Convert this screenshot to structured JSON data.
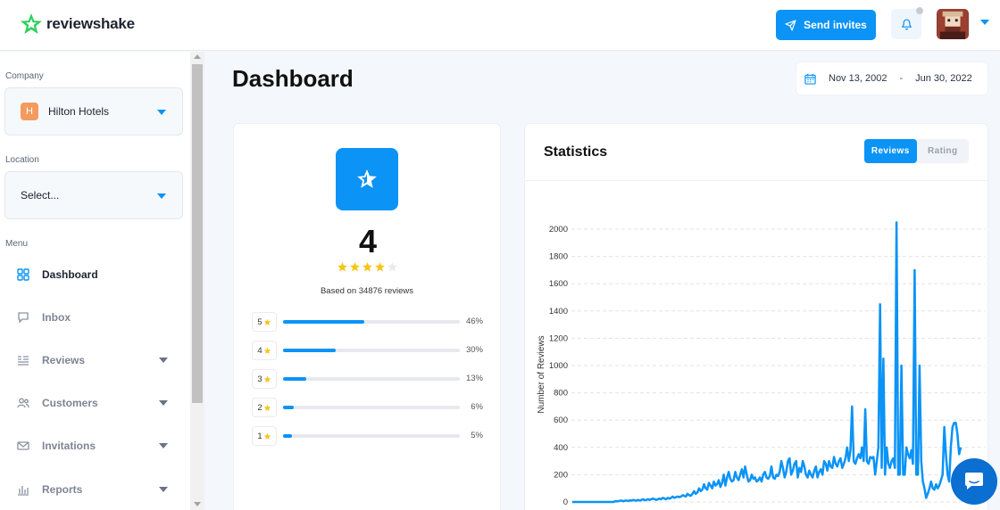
{
  "app": {
    "name": "reviewshake"
  },
  "header": {
    "send_invites_label": "Send invites"
  },
  "sidebar": {
    "company_label": "Company",
    "company_value": "Hilton Hotels",
    "company_badge": "H",
    "location_label": "Location",
    "location_value": "Select...",
    "menu_label": "Menu",
    "items": [
      {
        "label": "Dashboard",
        "icon": "grid-icon",
        "active": true,
        "has_caret": false
      },
      {
        "label": "Inbox",
        "icon": "chat-icon",
        "active": false,
        "has_caret": false
      },
      {
        "label": "Reviews",
        "icon": "reviews-icon",
        "active": false,
        "has_caret": true
      },
      {
        "label": "Customers",
        "icon": "users-icon",
        "active": false,
        "has_caret": true
      },
      {
        "label": "Invitations",
        "icon": "mail-icon",
        "active": false,
        "has_caret": true
      },
      {
        "label": "Reports",
        "icon": "bar-chart-icon",
        "active": false,
        "has_caret": true
      }
    ]
  },
  "main": {
    "title": "Dashboard",
    "date_from": "Nov 13, 2002",
    "date_separator": "-",
    "date_to": "Jun 30, 2022"
  },
  "rating": {
    "value": "4",
    "stars": 4,
    "based_on": "Based on 34876 reviews",
    "distribution": [
      {
        "star": "5",
        "percent": 46,
        "label": "46%"
      },
      {
        "star": "4",
        "percent": 30,
        "label": "30%"
      },
      {
        "star": "3",
        "percent": 13,
        "label": "13%"
      },
      {
        "star": "2",
        "percent": 6,
        "label": "6%"
      },
      {
        "star": "1",
        "percent": 5,
        "label": "5%"
      }
    ]
  },
  "statistics": {
    "title": "Statistics",
    "tabs": [
      {
        "label": "Reviews",
        "active": true
      },
      {
        "label": "Rating",
        "active": false
      }
    ]
  },
  "colors": {
    "accent": "#0b93f6",
    "star": "#f5c518",
    "logo_green": "#2bd05b"
  },
  "chart_data": {
    "type": "line",
    "ylabel": "Number of Reviews",
    "xlabel": "",
    "ylim": [
      0,
      2000
    ],
    "yticks": [
      "0",
      "200",
      "400",
      "600",
      "800",
      "1000",
      "1200",
      "1400",
      "1600",
      "1800",
      "2000"
    ],
    "grid": true,
    "series": [
      {
        "values": [
          0,
          0,
          0,
          0,
          0,
          0,
          0,
          0,
          0,
          0,
          0,
          0,
          0,
          0,
          0,
          0,
          0,
          0,
          0,
          0,
          0,
          0,
          0,
          0,
          0,
          0,
          5,
          5,
          5,
          10,
          10,
          5,
          10,
          10,
          8,
          12,
          10,
          15,
          12,
          10,
          15,
          10,
          15,
          20,
          12,
          15,
          20,
          15,
          20,
          25,
          20,
          15,
          20,
          25,
          20,
          30,
          25,
          20,
          30,
          25,
          30,
          40,
          30,
          35,
          40,
          35,
          40,
          50,
          45,
          40,
          60,
          50,
          45,
          60,
          80,
          60,
          70,
          100,
          80,
          90,
          130,
          100,
          90,
          140,
          120,
          100,
          150,
          120,
          130,
          160,
          110,
          140,
          200,
          120,
          180,
          220,
          170,
          150,
          160,
          220,
          180,
          160,
          200,
          240,
          180,
          260,
          200,
          150,
          160,
          200,
          170,
          180,
          150,
          160,
          180,
          150,
          200,
          220,
          180,
          170,
          190,
          260,
          180,
          170,
          200,
          190,
          220,
          300,
          250,
          180,
          220,
          300,
          320,
          200,
          230,
          280,
          300,
          180,
          250,
          220,
          300,
          260,
          200,
          180,
          230,
          200,
          180,
          230,
          260,
          180,
          220,
          240,
          200,
          300,
          280,
          230,
          300,
          260,
          250,
          330,
          280,
          260,
          300,
          320,
          250,
          280,
          320,
          400,
          300,
          380,
          700,
          300,
          280,
          320,
          350,
          320,
          400,
          300,
          680,
          300,
          280,
          330,
          320,
          330,
          200,
          300,
          400,
          1450,
          250,
          1050,
          200,
          400,
          280,
          250,
          300,
          320,
          250,
          2080,
          200,
          200,
          1000,
          200,
          200,
          400,
          350,
          320,
          380,
          280,
          1700,
          200,
          200,
          1000,
          300,
          150,
          100,
          30,
          60,
          100,
          150,
          100,
          90,
          130,
          100,
          120,
          160,
          200,
          550,
          350,
          200,
          150,
          400,
          550,
          580,
          580,
          500,
          350,
          400
        ]
      }
    ]
  }
}
